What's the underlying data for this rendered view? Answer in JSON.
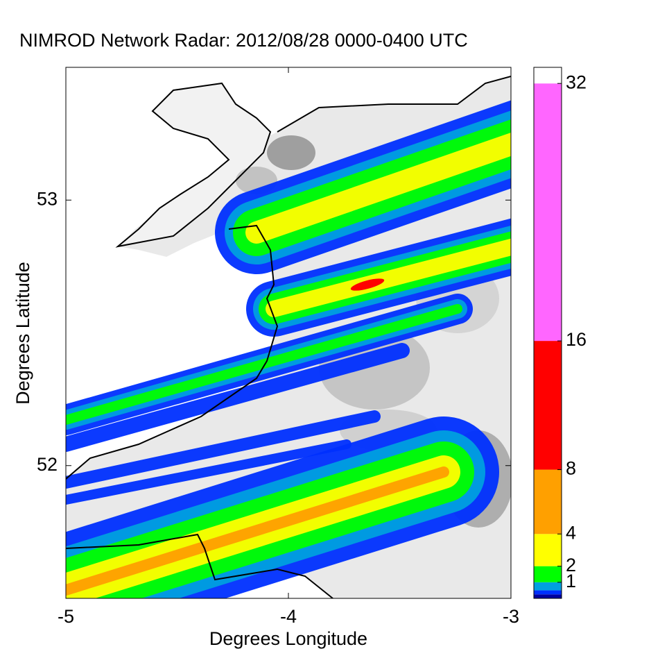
{
  "chart_data": {
    "type": "radar-map",
    "title": "NIMROD Network Radar: 2012/08/28 0000-0400 UTC",
    "x_label": "Degrees Longitude",
    "y_label": "Degrees Latitude",
    "xlim": [
      -5,
      -3
    ],
    "xticks": [
      -5,
      -4,
      -3
    ],
    "ylim": [
      51.5,
      53.5
    ],
    "yticks": [
      52,
      53
    ],
    "colorbar": {
      "lim": [
        0,
        33
      ],
      "levels": [
        0,
        0.25,
        0.5,
        1,
        2,
        4,
        8,
        16,
        32,
        33
      ],
      "colors": [
        "#0000a0",
        "#0030ff",
        "#00a0e0",
        "#00ff00",
        "#ffff00",
        "#ffa000",
        "#ff0000",
        "#ff66ff",
        "#ffffff"
      ],
      "ticks": [
        1,
        2,
        4,
        8,
        16,
        32
      ]
    }
  }
}
